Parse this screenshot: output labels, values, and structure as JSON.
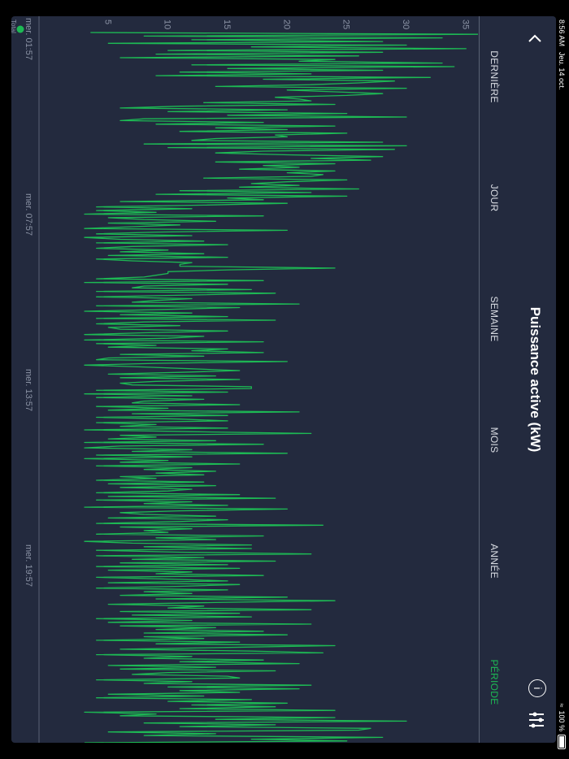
{
  "status_bar": {
    "time": "8:56 AM",
    "date": "Jeu. 14 oct.",
    "battery": "100 %"
  },
  "header": {
    "title": "Puissance active (kW)",
    "back_icon": "chevron-left-icon",
    "info_icon": "info-icon",
    "filter_icon": "sliders-icon"
  },
  "tabs": [
    {
      "label": "DERNIÈRE",
      "active": false
    },
    {
      "label": "JOUR",
      "active": false
    },
    {
      "label": "SEMAINE",
      "active": false
    },
    {
      "label": "MOIS",
      "active": false
    },
    {
      "label": "ANNÉE",
      "active": false
    },
    {
      "label": "PÉRIODE",
      "active": true
    }
  ],
  "colors": {
    "panel": "#232a3e",
    "accent": "#1db954",
    "axis_text": "#8b93a5"
  },
  "chart_data": {
    "type": "line",
    "title": "",
    "xlabel": "",
    "ylabel": "",
    "ylim": [
      0,
      36
    ],
    "y_ticks": [
      5,
      10,
      15,
      20,
      25,
      30,
      35
    ],
    "x_tick_labels": [
      "mer. 01:57",
      "mer. 07:57",
      "mer. 13:57",
      "mer. 19:57"
    ],
    "series": [
      {
        "name": "Total",
        "color": "#1db954",
        "values": [
          3.5,
          36,
          8,
          33,
          12,
          28,
          5,
          30,
          17,
          35,
          10,
          28,
          9,
          26,
          6,
          24,
          21,
          33,
          12,
          34,
          15,
          28,
          11,
          22,
          9,
          32,
          18,
          29,
          26,
          22,
          14,
          30,
          20,
          24,
          28,
          25,
          19,
          21,
          22,
          13,
          24,
          11,
          6,
          20,
          10,
          25,
          15,
          30,
          8,
          6,
          18,
          9,
          24,
          14,
          20,
          11,
          25,
          19,
          20,
          14,
          12,
          28,
          8,
          30,
          10,
          29,
          18,
          14,
          20,
          28,
          22,
          27,
          14,
          24,
          18,
          21,
          16,
          24,
          20,
          23,
          22,
          13,
          25,
          20,
          17,
          21,
          16,
          26,
          11,
          22,
          9,
          25,
          15,
          18,
          6,
          20,
          13,
          4,
          12,
          4,
          9,
          3,
          18,
          5,
          8,
          14,
          5,
          11,
          7,
          3,
          20,
          9,
          4,
          12,
          3,
          6,
          13,
          4,
          15,
          7,
          4,
          10,
          6,
          13,
          5,
          15,
          4,
          7,
          12,
          11,
          11,
          24,
          15,
          10,
          10,
          9,
          8,
          4,
          18,
          3,
          15,
          8,
          7,
          17,
          4,
          19,
          12,
          4,
          12,
          9,
          7,
          21,
          4,
          16,
          10,
          3,
          12,
          6,
          15,
          4,
          19,
          8,
          4,
          11,
          5,
          6,
          15,
          8,
          3,
          13,
          10,
          3,
          18,
          4,
          9,
          5,
          15,
          12,
          18,
          6,
          13,
          5,
          4,
          20,
          9,
          3,
          8,
          12,
          16,
          11,
          5,
          14,
          6,
          16,
          9,
          6,
          7,
          17,
          17,
          4,
          15,
          3,
          12,
          4,
          13,
          8,
          7,
          16,
          4,
          10,
          5,
          21,
          7,
          15,
          4,
          11,
          15,
          4,
          9,
          6,
          15,
          3,
          12,
          22,
          6,
          9,
          5,
          14,
          3,
          18,
          6,
          3,
          12,
          7,
          20,
          4,
          12,
          3,
          10,
          6,
          16,
          4,
          12,
          8,
          14,
          9,
          13,
          6,
          9,
          4,
          13,
          5,
          14,
          6,
          12,
          10,
          4,
          16,
          5,
          19,
          4,
          12,
          8,
          15,
          3,
          20,
          11,
          6,
          8,
          14,
          5,
          15,
          11,
          4,
          23,
          6,
          12,
          8,
          10,
          4,
          18,
          9,
          14,
          3,
          7,
          17,
          8,
          17,
          4,
          11,
          22,
          4,
          13,
          7,
          19,
          6,
          15,
          4,
          16,
          5,
          12,
          9,
          18,
          4,
          10,
          15,
          5,
          16,
          11,
          4,
          15,
          8,
          12,
          6,
          20,
          9,
          24,
          14,
          5,
          13,
          10,
          22,
          6,
          16,
          7,
          17,
          4,
          12,
          5,
          22,
          6,
          14,
          9,
          18,
          8,
          20,
          8,
          13,
          4,
          16,
          9,
          24,
          15,
          6,
          17,
          23,
          4,
          12,
          8,
          18,
          11,
          21,
          5,
          14,
          6,
          19,
          10,
          7,
          15,
          16,
          4,
          12,
          8,
          22,
          10,
          21,
          11,
          16,
          5,
          13,
          4,
          17,
          10,
          20,
          12,
          19,
          11,
          24,
          3,
          9,
          6,
          24,
          14,
          30,
          8,
          19,
          11,
          27,
          26,
          5,
          14,
          8,
          28,
          17,
          25,
          3
        ]
      }
    ],
    "legend": "bottom-left"
  }
}
